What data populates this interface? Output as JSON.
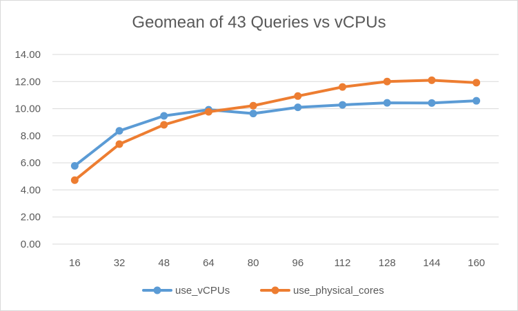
{
  "chart_data": {
    "type": "line",
    "title": "Geomean of 43 Queries vs vCPUs",
    "xlabel": "",
    "ylabel": "",
    "categories": [
      "16",
      "32",
      "48",
      "64",
      "80",
      "96",
      "112",
      "128",
      "144",
      "160"
    ],
    "ylim": [
      0,
      14
    ],
    "yticks": [
      "0.00",
      "2.00",
      "4.00",
      "6.00",
      "8.00",
      "10.00",
      "12.00",
      "14.00"
    ],
    "grid": true,
    "legend": "bottom",
    "series": [
      {
        "name": "use_vCPUs",
        "color": "#5b9bd5",
        "values": [
          5.78,
          8.36,
          9.47,
          9.92,
          9.64,
          10.1,
          10.28,
          10.43,
          10.42,
          10.58
        ]
      },
      {
        "name": "use_physical_cores",
        "color": "#ed7d31",
        "values": [
          4.72,
          7.38,
          8.81,
          9.77,
          10.22,
          10.93,
          11.6,
          12.0,
          12.1,
          11.92
        ]
      }
    ]
  }
}
